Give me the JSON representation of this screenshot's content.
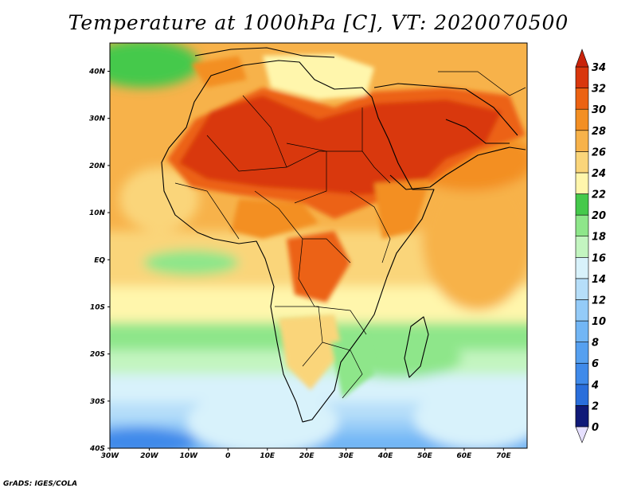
{
  "title": "Temperature at 1000hPa [C], VT: 2020070500",
  "footer": "GrADS: IGES/COLA",
  "map": {
    "region": "Africa",
    "lon_range": [
      -30,
      76
    ],
    "lat_range": [
      -40,
      46
    ],
    "lat_ticks": [
      {
        "value": 40,
        "label": "40N"
      },
      {
        "value": 30,
        "label": "30N"
      },
      {
        "value": 20,
        "label": "20N"
      },
      {
        "value": 10,
        "label": "10N"
      },
      {
        "value": 0,
        "label": "EQ"
      },
      {
        "value": -10,
        "label": "10S"
      },
      {
        "value": -20,
        "label": "20S"
      },
      {
        "value": -30,
        "label": "30S"
      },
      {
        "value": -40,
        "label": "40S"
      }
    ],
    "lon_ticks": [
      {
        "value": -30,
        "label": "30W"
      },
      {
        "value": -20,
        "label": "20W"
      },
      {
        "value": -10,
        "label": "10W"
      },
      {
        "value": 0,
        "label": "0"
      },
      {
        "value": 10,
        "label": "10E"
      },
      {
        "value": 20,
        "label": "20E"
      },
      {
        "value": 30,
        "label": "30E"
      },
      {
        "value": 40,
        "label": "40E"
      },
      {
        "value": 50,
        "label": "50E"
      },
      {
        "value": 60,
        "label": "60E"
      },
      {
        "value": 70,
        "label": "70E"
      }
    ]
  },
  "colorbar": {
    "levels": [
      {
        "label": "0",
        "color": "#3a3abf"
      },
      {
        "label": "2",
        "color": "#1c50c4"
      },
      {
        "label": "4",
        "color": "#2a6edb"
      },
      {
        "label": "6",
        "color": "#3f8aea"
      },
      {
        "label": "8",
        "color": "#56a0f0"
      },
      {
        "label": "10",
        "color": "#72b6f5"
      },
      {
        "label": "12",
        "color": "#94cbf8"
      },
      {
        "label": "14",
        "color": "#b6def9"
      },
      {
        "label": "16",
        "color": "#d8f2fb"
      },
      {
        "label": "18",
        "color": "#c3f5c0"
      },
      {
        "label": "20",
        "color": "#8ee68a"
      },
      {
        "label": "22",
        "color": "#45c94b"
      },
      {
        "label": "24",
        "color": "#fff6ac"
      },
      {
        "label": "26",
        "color": "#fad57a"
      },
      {
        "label": "28",
        "color": "#f7b24a"
      },
      {
        "label": "30",
        "color": "#f38f23"
      },
      {
        "label": "32",
        "color": "#ec6212"
      },
      {
        "label": "34",
        "color": "#d9370d"
      }
    ],
    "below_color": "#e6e0ff",
    "above_color": "#c9230a",
    "lowest_color": "#101a78"
  },
  "palette": {
    "ocean_base": "#94cbf8",
    "land_border": "#000000"
  }
}
